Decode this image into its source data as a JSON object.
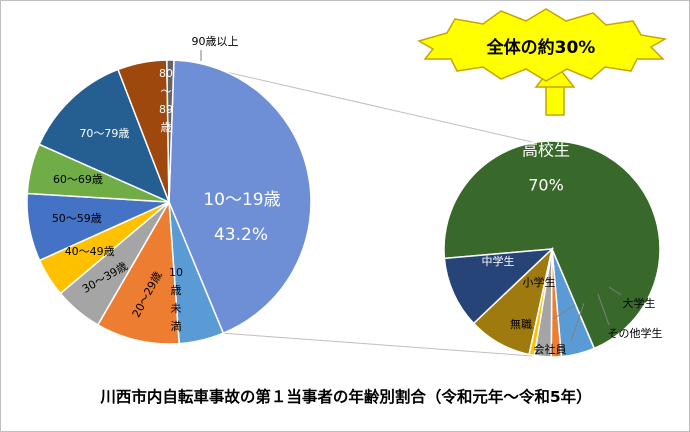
{
  "title": "川西市内自転車事故の第１当事者の年齢別割合（令和元年～令和5年）",
  "callout": "全体の約30%",
  "chart_data": [
    {
      "type": "pie",
      "name_ja": "年齢別",
      "unit": "%",
      "slices": [
        {
          "label": "10～19歳",
          "value": 43.2,
          "value_label": "43.2%",
          "color": "#6e8fd6",
          "text_color": "#ffffff"
        },
        {
          "label": "10歳未満",
          "value": 5.1,
          "color": "#5b9bd5",
          "text_color": "#000000"
        },
        {
          "label": "20～29歳",
          "value": 9.5,
          "color": "#ed7d31",
          "text_color": "#000000"
        },
        {
          "label": "30～39歳",
          "value": 5.5,
          "color": "#a5a5a5",
          "text_color": "#000000"
        },
        {
          "label": "40～49歳",
          "value": 4.4,
          "color": "#ffc000",
          "text_color": "#000000"
        },
        {
          "label": "50～59歳",
          "value": 7.7,
          "color": "#4472c4",
          "text_color": "#000000"
        },
        {
          "label": "60～69歳",
          "value": 5.7,
          "color": "#70ad47",
          "text_color": "#000000"
        },
        {
          "label": "70～79歳",
          "value": 12.5,
          "color": "#255e91",
          "text_color": "#ffffff"
        },
        {
          "label": "80～89歳",
          "value": 5.6,
          "color": "#9e480e",
          "text_color": "#ffffff"
        },
        {
          "label": "90歳以上",
          "value": 0.8,
          "color": "#636363",
          "text_color": "#000000"
        }
      ]
    },
    {
      "type": "pie",
      "name_ja": "10～19歳の内訳",
      "unit": "%",
      "slices": [
        {
          "label": "高校生",
          "value": 70,
          "value_label": "70%",
          "color": "#38692a",
          "text_color": "#ffffff"
        },
        {
          "label": "大学生",
          "value": 5,
          "color": "#5b9bd5",
          "text_color": "#000000"
        },
        {
          "label": "その他学生",
          "value": 1.5,
          "color": "#ed7d31",
          "text_color": "#000000"
        },
        {
          "label": "会社員",
          "value": 2.5,
          "color": "#a5a5a5",
          "text_color": "#000000"
        },
        {
          "label": "無職",
          "value": 0.8,
          "color": "#ffc000",
          "text_color": "#000000"
        },
        {
          "label": "小学生",
          "value": 9.5,
          "color": "#9f7a0f",
          "text_color": "#000000"
        },
        {
          "label": "中学生",
          "value": 10.7,
          "color": "#264478",
          "text_color": "#ffffff"
        }
      ]
    }
  ]
}
